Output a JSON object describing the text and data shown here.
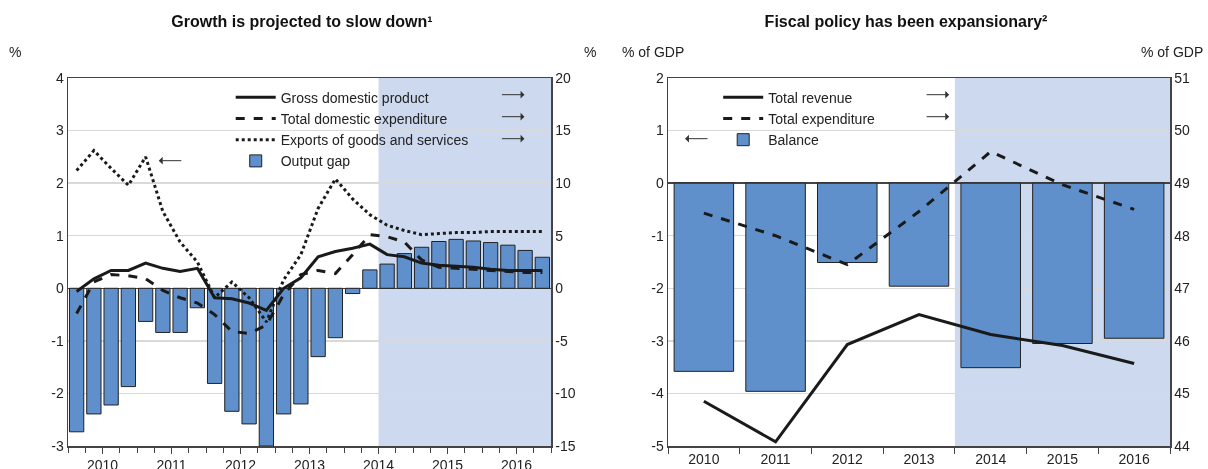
{
  "chart_data": [
    {
      "type": "bar",
      "title": "Growth is projected to slow down¹",
      "ylabel": "%",
      "y2label": "%",
      "x": [
        2010.125,
        2010.375,
        2010.625,
        2010.875,
        2011.125,
        2011.375,
        2011.625,
        2011.875,
        2012.125,
        2012.375,
        2012.625,
        2012.875,
        2013.125,
        2013.375,
        2013.625,
        2013.875,
        2014.125,
        2014.375,
        2014.625,
        2014.875,
        2015.125,
        2015.375,
        2015.625,
        2015.875,
        2016.125,
        2016.375,
        2016.625,
        2016.875
      ],
      "series": [
        {
          "name": "Gross domestic product",
          "type": "line",
          "axis": "y2",
          "line_style": "solid",
          "color": "#1a1a1a",
          "values": [
            -0.3,
            0.9,
            1.7,
            1.7,
            2.4,
            1.9,
            1.6,
            1.9,
            -0.9,
            -1.0,
            -1.4,
            -2.1,
            0.0,
            1.0,
            3.0,
            3.5,
            3.8,
            4.2,
            3.2,
            3.0,
            2.4,
            2.2,
            2.1,
            2.0,
            1.8,
            1.7,
            1.7,
            1.7
          ]
        },
        {
          "name": "Total domestic expenditure",
          "type": "line",
          "axis": "y2",
          "line_style": "dashed",
          "color": "#1a1a1a",
          "values": [
            -2.4,
            0.6,
            1.3,
            1.2,
            0.9,
            -0.2,
            -0.9,
            -1.4,
            -2.5,
            -4.1,
            -4.3,
            -3.5,
            -0.6,
            1.3,
            1.7,
            1.4,
            3.2,
            5.1,
            4.9,
            4.4,
            2.7,
            2.0,
            1.9,
            1.8,
            1.7,
            1.6,
            1.5,
            1.5
          ]
        },
        {
          "name": "Exports of goods and services",
          "type": "line",
          "axis": "y2",
          "line_style": "dotted",
          "color": "#1a1a1a",
          "values": [
            11.2,
            13.1,
            11.4,
            9.8,
            12.5,
            7.3,
            4.4,
            2.5,
            -0.9,
            0.6,
            -0.9,
            -3.2,
            0.8,
            3.2,
            7.6,
            10.4,
            8.5,
            7.0,
            6.0,
            5.5,
            5.1,
            5.2,
            5.3,
            5.3,
            5.4,
            5.4,
            5.4,
            5.4
          ]
        },
        {
          "name": "Output gap",
          "axis": "y",
          "color": "#6090cc",
          "values": [
            -2.73,
            -2.39,
            -2.22,
            -1.87,
            -0.63,
            -0.84,
            -0.84,
            -0.37,
            -1.81,
            -2.34,
            -2.58,
            -3.0,
            -2.39,
            -2.2,
            -1.3,
            -0.94,
            -0.1,
            0.35,
            0.46,
            0.66,
            0.78,
            0.89,
            0.93,
            0.9,
            0.87,
            0.82,
            0.72,
            0.59
          ]
        }
      ],
      "xlim": [
        2010,
        2017
      ],
      "xticks": [
        {
          "value": 2010.5,
          "label": "2010"
        },
        {
          "value": 2011.5,
          "label": "2011"
        },
        {
          "value": 2012.5,
          "label": "2012"
        },
        {
          "value": 2013.5,
          "label": "2013"
        },
        {
          "value": 2014.5,
          "label": "2014"
        },
        {
          "value": 2015.5,
          "label": "2015"
        },
        {
          "value": 2016.5,
          "label": "2016"
        },
        {
          "value": 2010,
          "label": null
        },
        {
          "value": 2010.25,
          "label": null
        },
        {
          "value": 2010.75,
          "label": null
        },
        {
          "value": 2011,
          "label": null
        },
        {
          "value": 2011.25,
          "label": null
        },
        {
          "value": 2011.75,
          "label": null
        },
        {
          "value": 2012,
          "label": null
        },
        {
          "value": 2012.25,
          "label": null
        },
        {
          "value": 2012.75,
          "label": null
        },
        {
          "value": 2013,
          "label": null
        },
        {
          "value": 2013.25,
          "label": null
        },
        {
          "value": 2013.75,
          "label": null
        },
        {
          "value": 2014,
          "label": null
        },
        {
          "value": 2014.25,
          "label": null
        },
        {
          "value": 2014.75,
          "label": null
        },
        {
          "value": 2015,
          "label": null
        },
        {
          "value": 2015.25,
          "label": null
        },
        {
          "value": 2015.75,
          "label": null
        },
        {
          "value": 2016,
          "label": null
        },
        {
          "value": 2016.25,
          "label": null
        },
        {
          "value": 2016.75,
          "label": null
        },
        {
          "value": 2017,
          "label": null
        }
      ],
      "ylim": [
        -3,
        4
      ],
      "yticks": [
        -3,
        -2,
        -1,
        0,
        1,
        2,
        3,
        4
      ],
      "y2lim": [
        -15,
        20
      ],
      "y2ticks": [
        -15,
        -10,
        -5,
        0,
        5,
        10,
        15,
        20
      ],
      "bands": [
        {
          "axis": "x",
          "from": 2014.5,
          "to": 2017,
          "color": "#cdd9ee"
        }
      ],
      "grid": "y",
      "legend": "top right"
    },
    {
      "type": "bar",
      "title": "Fiscal policy has been expansionary²",
      "ylabel": "% of GDP",
      "y2label": "% of GDP",
      "categories": [
        "2010",
        "2011",
        "2012",
        "2013",
        "2014",
        "2015",
        "2016"
      ],
      "series": [
        {
          "name": "Total revenue",
          "type": "line",
          "axis": "y2",
          "line_style": "solid",
          "color": "#1a1a1a",
          "values": [
            44.85,
            44.08,
            45.93,
            46.5,
            46.12,
            45.91,
            45.57
          ]
        },
        {
          "name": "Total expenditure",
          "type": "line",
          "axis": "y2",
          "line_style": "dashed",
          "color": "#1a1a1a",
          "values": [
            48.43,
            48.0,
            47.45,
            48.46,
            49.6,
            48.97,
            48.5
          ]
        },
        {
          "name": "Balance",
          "axis": "y",
          "color": "#6090cc",
          "values": [
            -3.58,
            -3.96,
            -1.51,
            -1.96,
            -3.51,
            -3.05,
            -2.95
          ]
        }
      ],
      "ylim": [
        -5,
        2
      ],
      "yticks": [
        -5,
        -4,
        -3,
        -2,
        -1,
        0,
        1,
        2
      ],
      "y2lim": [
        44,
        51
      ],
      "y2ticks": [
        44,
        45,
        46,
        47,
        48,
        49,
        50,
        51
      ],
      "bands": [
        {
          "axis": "x",
          "from": "2014",
          "to": "2016",
          "color": "#cdd9ee"
        }
      ],
      "grid": "y",
      "legend": "top left"
    }
  ]
}
